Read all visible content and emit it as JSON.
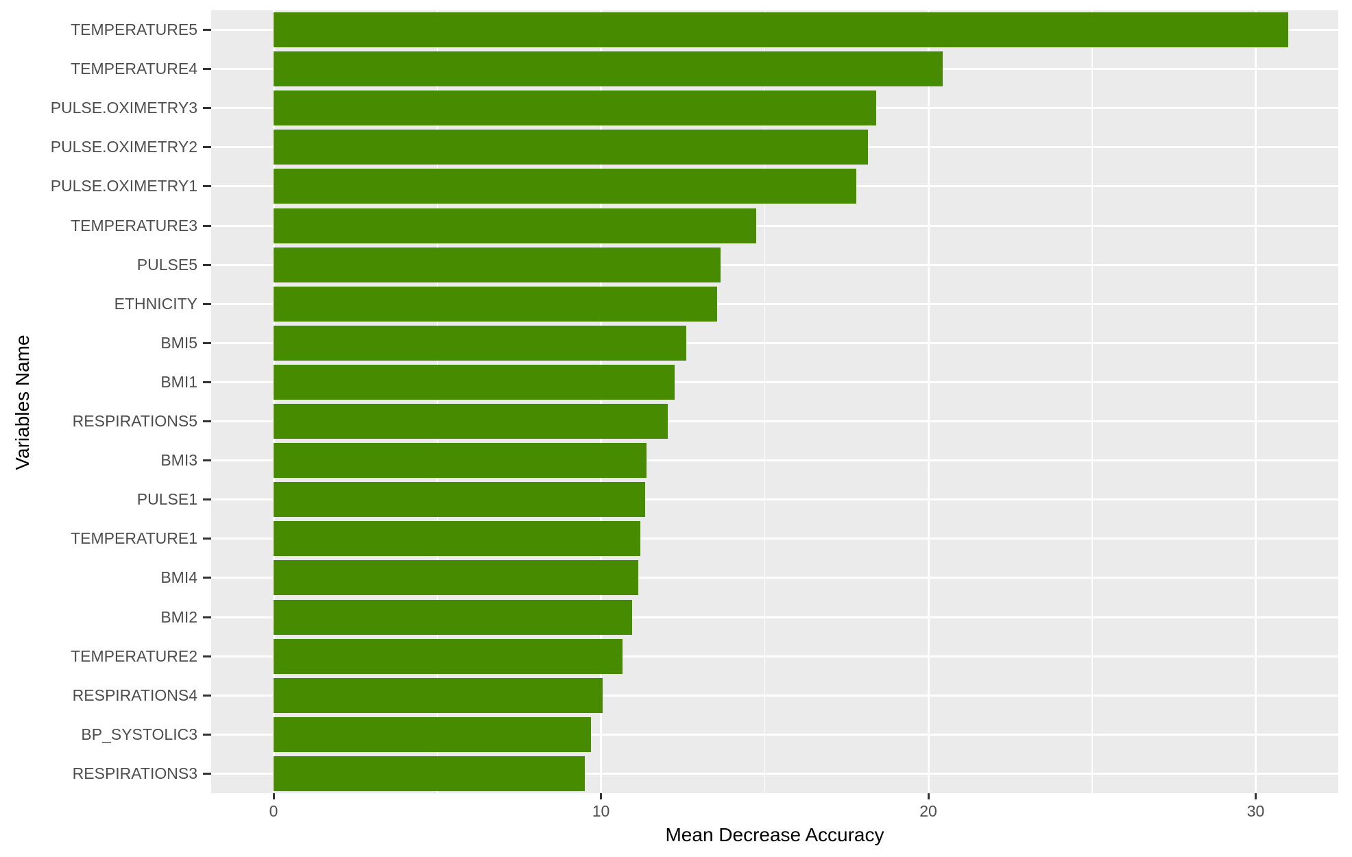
{
  "chart_data": {
    "type": "bar",
    "orientation": "horizontal",
    "title": "",
    "xlabel": "Mean Decrease Accuracy",
    "ylabel": "Variables Name",
    "categories": [
      "TEMPERATURE5",
      "TEMPERATURE4",
      "PULSE.OXIMETRY3",
      "PULSE.OXIMETRY2",
      "PULSE.OXIMETRY1",
      "TEMPERATURE3",
      "PULSE5",
      "ETHNICITY",
      "BMI5",
      "BMI1",
      "RESPIRATIONS5",
      "BMI3",
      "PULSE1",
      "TEMPERATURE1",
      "BMI4",
      "BMI2",
      "TEMPERATURE2",
      "RESPIRATIONS4",
      "BP_SYSTOLIC3",
      "RESPIRATIONS3"
    ],
    "values": [
      31.0,
      20.45,
      18.4,
      18.15,
      17.8,
      14.75,
      13.65,
      13.55,
      12.6,
      12.25,
      12.05,
      11.4,
      11.35,
      11.2,
      11.15,
      10.95,
      10.65,
      10.05,
      9.7,
      9.5
    ],
    "x_ticks": [
      0,
      10,
      20,
      30
    ],
    "x_tick_labels": [
      "0",
      "10",
      "20",
      "30"
    ],
    "x_minor_ticks": [
      5,
      15,
      25
    ],
    "xlim": [
      -1.9,
      32.5
    ],
    "grid": "on",
    "legend": "none",
    "bar_color": "#478C00",
    "panel_color": "#EBEBEB",
    "grid_color": "#FFFFFF",
    "tick_label_color": "#4D4D4D",
    "axis_title_color": "#000000"
  }
}
